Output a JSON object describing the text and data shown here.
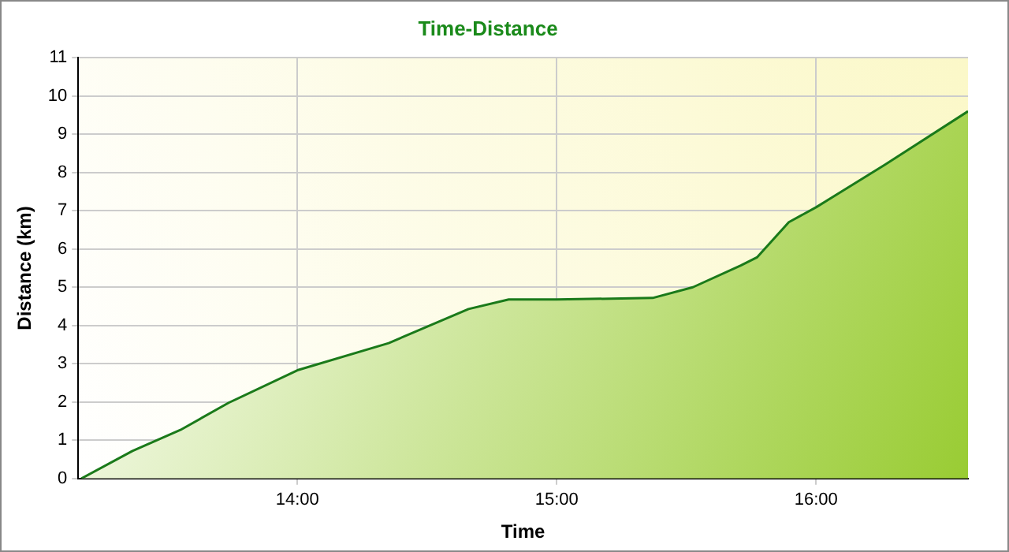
{
  "chart_data": {
    "type": "area",
    "title": "Time-Distance",
    "xlabel": "Time",
    "ylabel": "Distance (km)",
    "x": [
      13.167,
      13.364,
      13.549,
      13.735,
      14.0,
      14.352,
      14.66,
      14.815,
      15.0,
      15.37,
      15.525,
      15.71,
      15.772,
      15.895,
      16.0,
      16.265,
      16.586
    ],
    "series": [
      {
        "color": "#1a7a1a",
        "values": [
          0,
          0.72,
          1.27,
          1.98,
          2.83,
          3.54,
          4.43,
          4.68,
          4.68,
          4.72,
          5.0,
          5.57,
          5.78,
          6.7,
          7.09,
          8.2,
          9.6
        ]
      }
    ],
    "xlim": [
      13.155,
      16.586
    ],
    "xticks": [
      {
        "value": 14,
        "label": "14:00"
      },
      {
        "value": 15,
        "label": "15:00"
      },
      {
        "value": 16,
        "label": "16:00"
      }
    ],
    "ylim": [
      0,
      11
    ],
    "yticks": [
      0,
      1,
      2,
      3,
      4,
      5,
      6,
      7,
      8,
      9,
      10,
      11
    ],
    "grid": true,
    "legend": false
  }
}
